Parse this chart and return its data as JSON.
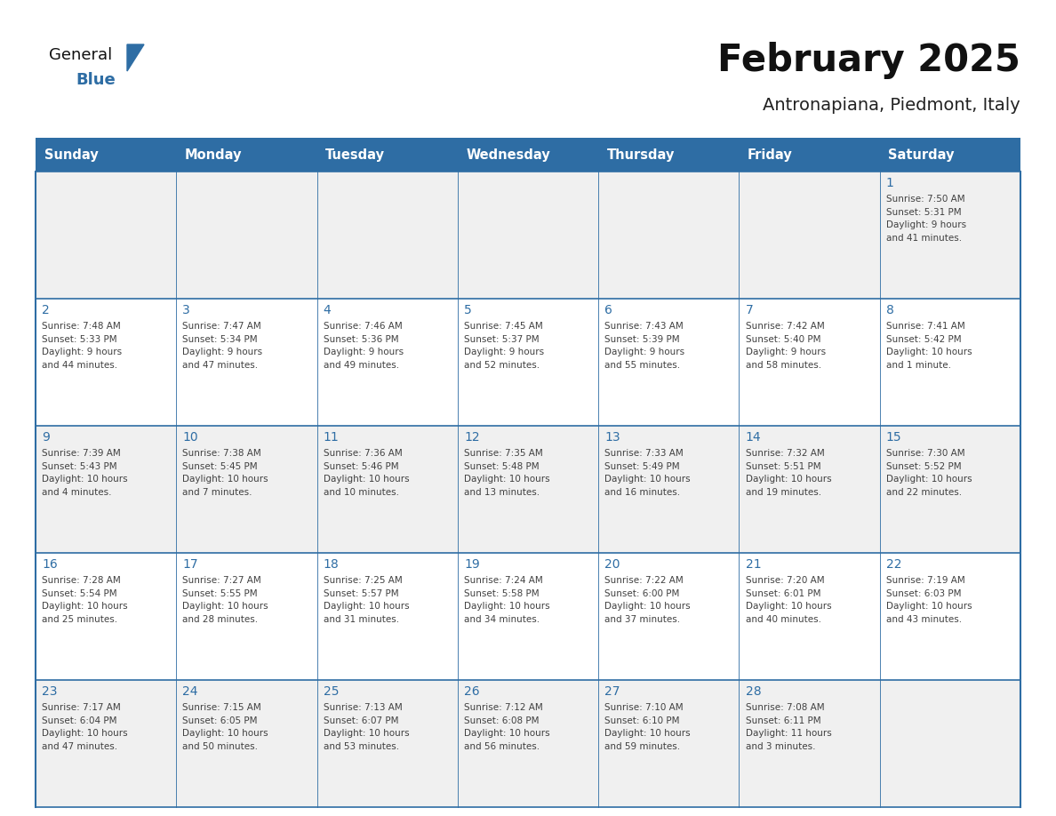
{
  "title": "February 2025",
  "subtitle": "Antronapiana, Piedmont, Italy",
  "header_bg": "#2E6DA4",
  "header_text": "#FFFFFF",
  "cell_bg_light": "#F0F0F0",
  "cell_bg_white": "#FFFFFF",
  "border_color": "#2E6DA4",
  "text_color": "#404040",
  "day_number_color": "#2E6DA4",
  "days_of_week": [
    "Sunday",
    "Monday",
    "Tuesday",
    "Wednesday",
    "Thursday",
    "Friday",
    "Saturday"
  ],
  "weeks": [
    [
      {
        "day": null,
        "info": null
      },
      {
        "day": null,
        "info": null
      },
      {
        "day": null,
        "info": null
      },
      {
        "day": null,
        "info": null
      },
      {
        "day": null,
        "info": null
      },
      {
        "day": null,
        "info": null
      },
      {
        "day": "1",
        "info": "Sunrise: 7:50 AM\nSunset: 5:31 PM\nDaylight: 9 hours\nand 41 minutes."
      }
    ],
    [
      {
        "day": "2",
        "info": "Sunrise: 7:48 AM\nSunset: 5:33 PM\nDaylight: 9 hours\nand 44 minutes."
      },
      {
        "day": "3",
        "info": "Sunrise: 7:47 AM\nSunset: 5:34 PM\nDaylight: 9 hours\nand 47 minutes."
      },
      {
        "day": "4",
        "info": "Sunrise: 7:46 AM\nSunset: 5:36 PM\nDaylight: 9 hours\nand 49 minutes."
      },
      {
        "day": "5",
        "info": "Sunrise: 7:45 AM\nSunset: 5:37 PM\nDaylight: 9 hours\nand 52 minutes."
      },
      {
        "day": "6",
        "info": "Sunrise: 7:43 AM\nSunset: 5:39 PM\nDaylight: 9 hours\nand 55 minutes."
      },
      {
        "day": "7",
        "info": "Sunrise: 7:42 AM\nSunset: 5:40 PM\nDaylight: 9 hours\nand 58 minutes."
      },
      {
        "day": "8",
        "info": "Sunrise: 7:41 AM\nSunset: 5:42 PM\nDaylight: 10 hours\nand 1 minute."
      }
    ],
    [
      {
        "day": "9",
        "info": "Sunrise: 7:39 AM\nSunset: 5:43 PM\nDaylight: 10 hours\nand 4 minutes."
      },
      {
        "day": "10",
        "info": "Sunrise: 7:38 AM\nSunset: 5:45 PM\nDaylight: 10 hours\nand 7 minutes."
      },
      {
        "day": "11",
        "info": "Sunrise: 7:36 AM\nSunset: 5:46 PM\nDaylight: 10 hours\nand 10 minutes."
      },
      {
        "day": "12",
        "info": "Sunrise: 7:35 AM\nSunset: 5:48 PM\nDaylight: 10 hours\nand 13 minutes."
      },
      {
        "day": "13",
        "info": "Sunrise: 7:33 AM\nSunset: 5:49 PM\nDaylight: 10 hours\nand 16 minutes."
      },
      {
        "day": "14",
        "info": "Sunrise: 7:32 AM\nSunset: 5:51 PM\nDaylight: 10 hours\nand 19 minutes."
      },
      {
        "day": "15",
        "info": "Sunrise: 7:30 AM\nSunset: 5:52 PM\nDaylight: 10 hours\nand 22 minutes."
      }
    ],
    [
      {
        "day": "16",
        "info": "Sunrise: 7:28 AM\nSunset: 5:54 PM\nDaylight: 10 hours\nand 25 minutes."
      },
      {
        "day": "17",
        "info": "Sunrise: 7:27 AM\nSunset: 5:55 PM\nDaylight: 10 hours\nand 28 minutes."
      },
      {
        "day": "18",
        "info": "Sunrise: 7:25 AM\nSunset: 5:57 PM\nDaylight: 10 hours\nand 31 minutes."
      },
      {
        "day": "19",
        "info": "Sunrise: 7:24 AM\nSunset: 5:58 PM\nDaylight: 10 hours\nand 34 minutes."
      },
      {
        "day": "20",
        "info": "Sunrise: 7:22 AM\nSunset: 6:00 PM\nDaylight: 10 hours\nand 37 minutes."
      },
      {
        "day": "21",
        "info": "Sunrise: 7:20 AM\nSunset: 6:01 PM\nDaylight: 10 hours\nand 40 minutes."
      },
      {
        "day": "22",
        "info": "Sunrise: 7:19 AM\nSunset: 6:03 PM\nDaylight: 10 hours\nand 43 minutes."
      }
    ],
    [
      {
        "day": "23",
        "info": "Sunrise: 7:17 AM\nSunset: 6:04 PM\nDaylight: 10 hours\nand 47 minutes."
      },
      {
        "day": "24",
        "info": "Sunrise: 7:15 AM\nSunset: 6:05 PM\nDaylight: 10 hours\nand 50 minutes."
      },
      {
        "day": "25",
        "info": "Sunrise: 7:13 AM\nSunset: 6:07 PM\nDaylight: 10 hours\nand 53 minutes."
      },
      {
        "day": "26",
        "info": "Sunrise: 7:12 AM\nSunset: 6:08 PM\nDaylight: 10 hours\nand 56 minutes."
      },
      {
        "day": "27",
        "info": "Sunrise: 7:10 AM\nSunset: 6:10 PM\nDaylight: 10 hours\nand 59 minutes."
      },
      {
        "day": "28",
        "info": "Sunrise: 7:08 AM\nSunset: 6:11 PM\nDaylight: 11 hours\nand 3 minutes."
      },
      {
        "day": null,
        "info": null
      }
    ]
  ],
  "logo_triangle_color": "#2E6DA4",
  "fig_width": 11.88,
  "fig_height": 9.18,
  "dpi": 100
}
